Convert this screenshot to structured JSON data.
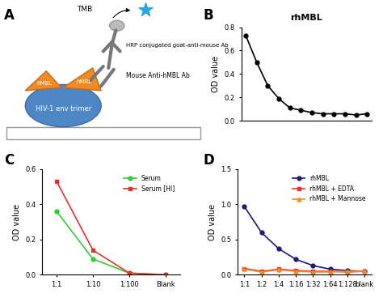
{
  "diagram": {
    "panel_label": "A",
    "texts": {
      "substrate": "TMB",
      "secondary": "HRP conjugated goat-anti-mouse Ab",
      "primary": "Mouse Anti-hMBL Ab",
      "lectin_left": "hMBL",
      "lectin_right": "hMBL",
      "antigen": "HIV-1 env trimer"
    }
  },
  "chart_data": [
    {
      "panel_label": "B",
      "type": "line",
      "title": "rhMBL",
      "y_label": "OD value",
      "categories": [
        null,
        null,
        null,
        null,
        null,
        null,
        null,
        null,
        null,
        null,
        null,
        null
      ],
      "series": [
        {
          "color": "#000000",
          "marker": "circle",
          "line_style": "solid",
          "values": [
            0.73,
            0.5,
            0.3,
            0.19,
            0.11,
            0.09,
            0.07,
            0.06,
            0.06,
            0.06,
            0.05,
            0.06
          ]
        }
      ],
      "ylim": [
        0,
        0.8
      ],
      "yticks": [
        {
          "value": 0,
          "label": "0.0"
        },
        0.2,
        0.4,
        0.6,
        0.8
      ]
    },
    {
      "panel_label": "C",
      "type": "line",
      "y_label": "OD value",
      "categories": [
        "1:1",
        "1:10",
        "1:100",
        "Blank"
      ],
      "series": [
        {
          "name": "Serum",
          "color": "#33cc33",
          "marker": "circle",
          "line_style": "solid",
          "values": [
            0.36,
            0.09,
            0.01,
            0.0
          ]
        },
        {
          "name": "Serum [HI]",
          "color": "#e8312a",
          "marker": "square",
          "line_style": "solid",
          "values": [
            0.53,
            0.14,
            0.01,
            0.0
          ]
        }
      ],
      "ylim": [
        0,
        0.6
      ],
      "yticks": [
        {
          "value": 0,
          "label": "0.0"
        },
        0.2,
        0.4,
        0.6
      ],
      "legend": "upper right"
    },
    {
      "panel_label": "D",
      "type": "line",
      "y_label": "OD value",
      "categories": [
        "1:1",
        "1:2",
        "1:4",
        "1:16",
        "1:32",
        "1:64",
        "1:128",
        "blank"
      ],
      "series": [
        {
          "name": "rhMBL",
          "color": "#1a1a7a",
          "marker": "circle",
          "line_style": "solid",
          "values": [
            0.97,
            0.6,
            0.37,
            0.22,
            0.13,
            0.08,
            0.06,
            0.05
          ]
        },
        {
          "name": "rhMBL + EDTA",
          "color": "#e8312a",
          "marker": "square",
          "line_style": "solid",
          "values": [
            0.09,
            0.05,
            0.08,
            0.06,
            0.05,
            0.05,
            0.04,
            0.05
          ]
        },
        {
          "name": "rhMBL + Mannose",
          "color": "#f08a24",
          "marker": "triangle",
          "line_style": "solid",
          "values": [
            0.08,
            0.04,
            0.07,
            0.05,
            0.04,
            0.04,
            0.05,
            0.05
          ]
        }
      ],
      "ylim": [
        0,
        1.5
      ],
      "yticks": [
        {
          "value": 0,
          "label": "0.0"
        },
        0.5,
        {
          "value": 1,
          "label": "1.0"
        },
        1.5
      ],
      "legend": "upper right"
    }
  ]
}
